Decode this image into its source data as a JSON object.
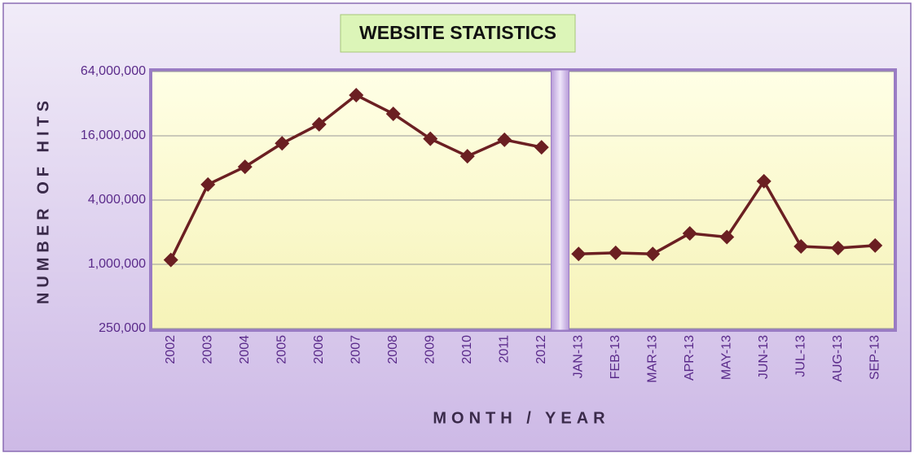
{
  "chart_data": {
    "type": "line",
    "title": "WEBSITE STATISTICS",
    "y_label": "NUMBER OF HITS",
    "x_label": "MONTH / YEAR",
    "categories": [
      "2002",
      "2003",
      "2004",
      "2005",
      "2006",
      "2007",
      "2008",
      "2009",
      "2010",
      "2011",
      "2012",
      null,
      "JAN-13",
      "FEB-13",
      "MAR-13",
      "APR-13",
      "MAY-13",
      "JUN-13",
      "JUL-13",
      "AUG-13",
      "SEP-13"
    ],
    "values": [
      1100000,
      5600000,
      8200000,
      13600000,
      20500000,
      38500000,
      25700000,
      15000000,
      10300000,
      14700000,
      12500000,
      null,
      1250000,
      1280000,
      1250000,
      1950000,
      1800000,
      6000000,
      1470000,
      1420000,
      1500000
    ],
    "color": "#6b1f22",
    "log_scale": true,
    "grid": true,
    "ylim": [
      250000,
      64000000
    ],
    "yticks": [
      {
        "value": 250000,
        "label": "250,000"
      },
      {
        "value": 1000000,
        "label": "1,000,000"
      },
      {
        "value": 4000000,
        "label": "4,000,000"
      },
      {
        "value": 16000000,
        "label": "16,000,000"
      },
      {
        "value": 64000000,
        "label": "64,000,000"
      }
    ]
  }
}
